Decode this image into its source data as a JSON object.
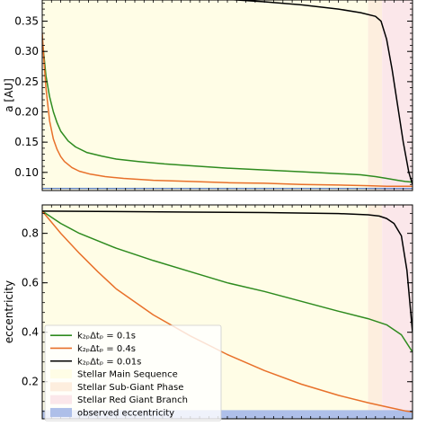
{
  "chart_data": [
    {
      "type": "line",
      "ylabel": "a [AU]",
      "xlabel": "",
      "ylim": [
        0.07,
        0.385
      ],
      "xlim": [
        0,
        1
      ],
      "yticks": [
        0.1,
        0.15,
        0.2,
        0.25,
        0.3,
        0.35
      ],
      "ytick_labels": [
        "0.10",
        "0.15",
        "0.20",
        "0.25",
        "0.30",
        "0.35"
      ],
      "phases": [
        {
          "name": "Stellar Main Sequence",
          "start": 0.0,
          "end": 0.88,
          "color": "#fffde6"
        },
        {
          "name": "Stellar Sub-Giant Phase",
          "start": 0.88,
          "end": 0.918,
          "color": "#fdeede"
        },
        {
          "name": "Stellar Red Giant Branch",
          "start": 0.918,
          "end": 1.0,
          "color": "#fbe7ea"
        }
      ],
      "observed_line": {
        "value": 0.0735,
        "color": "#5b7fc4"
      },
      "series": [
        {
          "color": "#2e8b1f",
          "x": [
            0.0,
            0.005,
            0.01,
            0.02,
            0.03,
            0.04,
            0.05,
            0.07,
            0.09,
            0.12,
            0.16,
            0.2,
            0.26,
            0.33,
            0.4,
            0.5,
            0.6,
            0.7,
            0.8,
            0.86,
            0.9,
            0.93,
            0.96,
            0.98,
            1.0
          ],
          "y": [
            0.32,
            0.29,
            0.26,
            0.225,
            0.2,
            0.182,
            0.168,
            0.152,
            0.142,
            0.133,
            0.127,
            0.122,
            0.118,
            0.114,
            0.111,
            0.107,
            0.104,
            0.101,
            0.098,
            0.096,
            0.093,
            0.09,
            0.087,
            0.085,
            0.084
          ]
        },
        {
          "color": "#e8702a",
          "x": [
            0.0,
            0.005,
            0.01,
            0.02,
            0.03,
            0.04,
            0.05,
            0.06,
            0.08,
            0.1,
            0.13,
            0.17,
            0.22,
            0.3,
            0.4,
            0.5,
            0.6,
            0.7,
            0.8,
            0.88,
            0.93,
            0.97,
            1.0
          ],
          "y": [
            0.33,
            0.28,
            0.24,
            0.185,
            0.155,
            0.138,
            0.126,
            0.118,
            0.108,
            0.102,
            0.097,
            0.093,
            0.09,
            0.087,
            0.085,
            0.083,
            0.082,
            0.08,
            0.079,
            0.078,
            0.077,
            0.077,
            0.077
          ]
        },
        {
          "color": "#000000",
          "x": [
            0.43,
            0.5,
            0.6,
            0.7,
            0.8,
            0.86,
            0.9,
            0.915,
            0.93,
            0.945,
            0.96,
            0.975,
            0.99,
            1.0
          ],
          "y": [
            0.388,
            0.386,
            0.382,
            0.377,
            0.37,
            0.364,
            0.358,
            0.35,
            0.32,
            0.27,
            0.21,
            0.15,
            0.1,
            0.08
          ]
        }
      ]
    },
    {
      "type": "line",
      "ylabel": "eccentricity",
      "xlabel": "",
      "ylim": [
        0.05,
        0.915
      ],
      "xlim": [
        0,
        1
      ],
      "yticks": [
        0.2,
        0.4,
        0.6,
        0.8
      ],
      "ytick_labels": [
        "0.2",
        "0.4",
        "0.6",
        "0.8"
      ],
      "phases": [
        {
          "name": "Stellar Main Sequence",
          "start": 0.0,
          "end": 0.88,
          "color": "#fffde6"
        },
        {
          "name": "Stellar Sub-Giant Phase",
          "start": 0.88,
          "end": 0.918,
          "color": "#fdeede"
        },
        {
          "name": "Stellar Red Giant Branch",
          "start": 0.918,
          "end": 1.0,
          "color": "#fbe7ea"
        }
      ],
      "observed_band": {
        "from": 0.05,
        "to": 0.085,
        "color": "#aebfe9"
      },
      "series": [
        {
          "color": "#2e8b1f",
          "x": [
            0.0,
            0.05,
            0.1,
            0.2,
            0.3,
            0.4,
            0.5,
            0.6,
            0.7,
            0.8,
            0.88,
            0.93,
            0.97,
            1.0
          ],
          "y": [
            0.89,
            0.84,
            0.8,
            0.74,
            0.69,
            0.645,
            0.6,
            0.565,
            0.525,
            0.485,
            0.455,
            0.43,
            0.39,
            0.32
          ]
        },
        {
          "color": "#e8702a",
          "x": [
            0.0,
            0.05,
            0.1,
            0.15,
            0.2,
            0.3,
            0.4,
            0.5,
            0.6,
            0.7,
            0.8,
            0.88,
            0.94,
            0.98,
            1.0
          ],
          "y": [
            0.89,
            0.8,
            0.72,
            0.645,
            0.575,
            0.47,
            0.385,
            0.31,
            0.245,
            0.19,
            0.145,
            0.115,
            0.095,
            0.082,
            0.078
          ]
        },
        {
          "color": "#000000",
          "x": [
            0.0,
            0.2,
            0.4,
            0.6,
            0.8,
            0.88,
            0.91,
            0.93,
            0.95,
            0.97,
            0.985,
            1.0
          ],
          "y": [
            0.89,
            0.888,
            0.886,
            0.884,
            0.88,
            0.875,
            0.87,
            0.86,
            0.84,
            0.79,
            0.65,
            0.4
          ]
        }
      ]
    }
  ],
  "legend": {
    "position": "lower-left",
    "entries": [
      {
        "label": "k₂ₚΔtₚ = 0.1s",
        "kind": "line",
        "color": "#2e8b1f"
      },
      {
        "label": "k₂ₚΔtₚ = 0.4s",
        "kind": "line",
        "color": "#e8702a"
      },
      {
        "label": "k₂ₚΔtₚ = 0.01s",
        "kind": "line",
        "color": "#000000"
      },
      {
        "label": "Stellar Main Sequence",
        "kind": "patch",
        "color": "#fffde6"
      },
      {
        "label": "Stellar Sub-Giant Phase",
        "kind": "patch",
        "color": "#fdeede"
      },
      {
        "label": "Stellar Red Giant Branch",
        "kind": "patch",
        "color": "#fbe7ea"
      },
      {
        "label": "observed eccentricity",
        "kind": "patch",
        "color": "#aebfe9"
      }
    ]
  }
}
